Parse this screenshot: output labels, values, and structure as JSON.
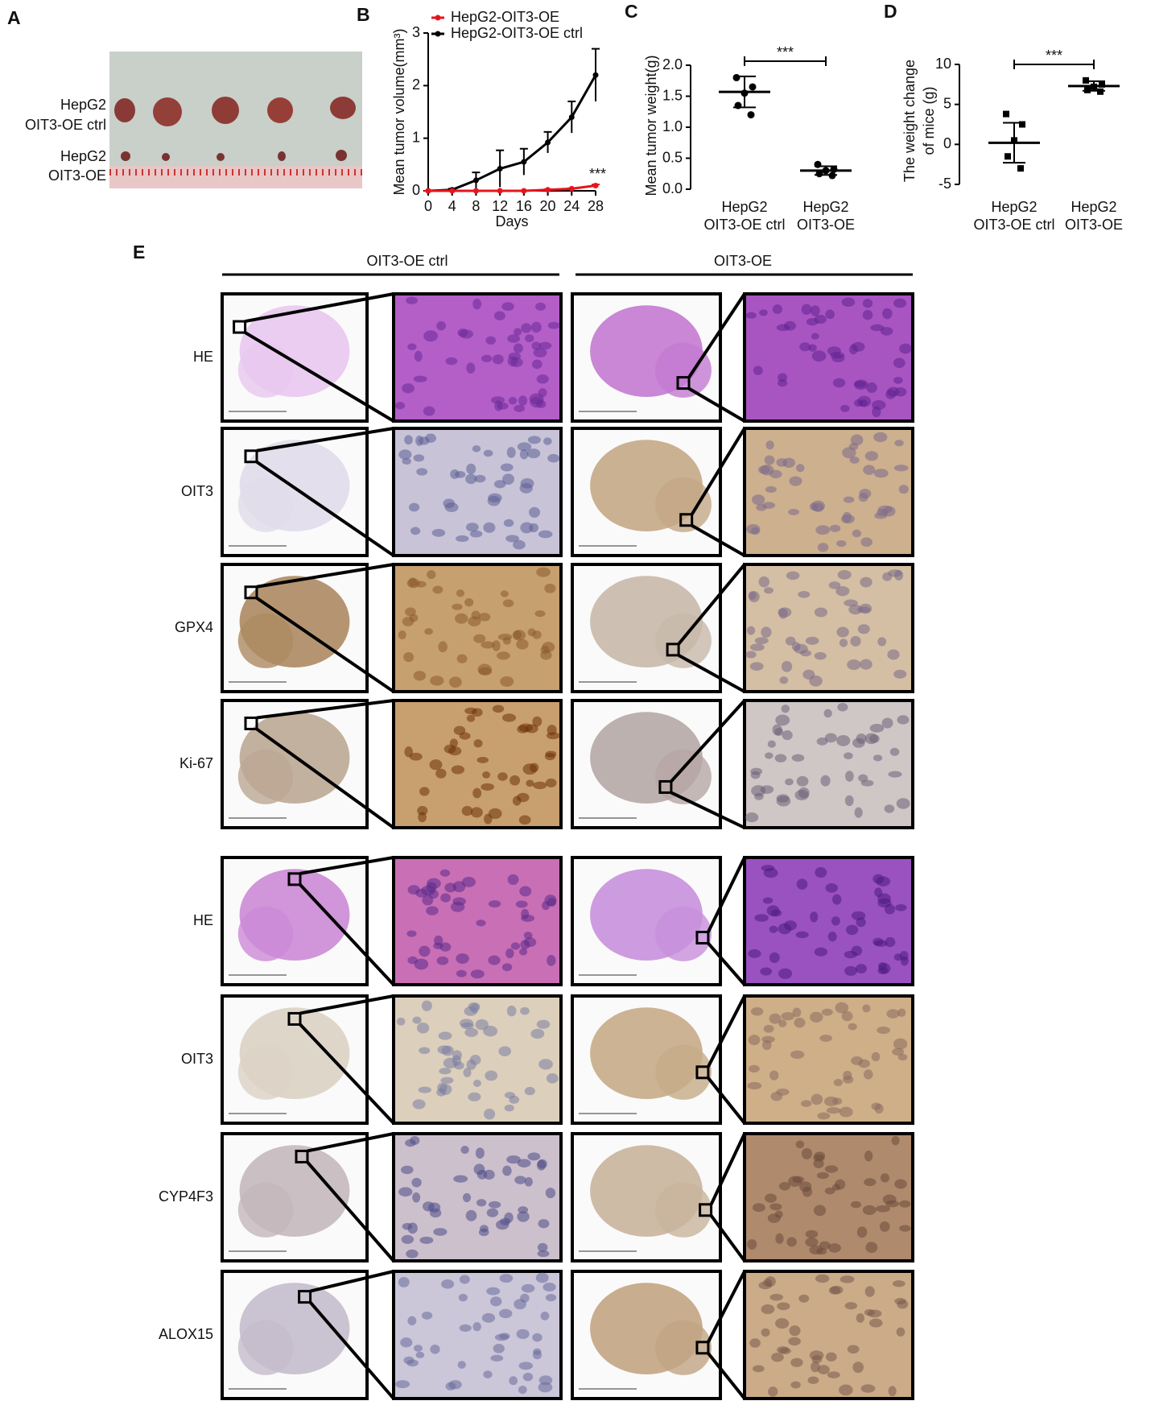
{
  "panel_labels": [
    "A",
    "B",
    "C",
    "D",
    "E"
  ],
  "panel_a": {
    "row_labels": [
      [
        "HepG2",
        "OIT3-OE  ctrl"
      ],
      [
        "HepG2",
        "OIT3-OE"
      ]
    ]
  },
  "chart_data": [
    {
      "type": "line",
      "xlabel": "Days",
      "ylabel": "Mean tumor volume(mm³)",
      "annotation": "***",
      "x": [
        0,
        4,
        8,
        12,
        16,
        20,
        24,
        28
      ],
      "xlim": [
        0,
        28
      ],
      "xticks": [
        0,
        4,
        8,
        12,
        16,
        20,
        24,
        28
      ],
      "ylim": [
        0,
        3
      ],
      "yticks": [
        0,
        1,
        2,
        3
      ],
      "series": [
        {
          "name": "HepG2-OIT3-OE",
          "color": "#e8141c",
          "values": [
            0,
            0,
            0,
            0,
            0,
            0.02,
            0.04,
            0.1
          ],
          "errors": [
            0,
            0,
            0,
            0,
            0,
            0.01,
            0.01,
            0.02
          ]
        },
        {
          "name": "HepG2-OIT3-OE  ctrl",
          "color": "#000000",
          "values": [
            0,
            0.02,
            0.2,
            0.42,
            0.55,
            0.92,
            1.4,
            2.2
          ],
          "errors": [
            0,
            0.02,
            0.15,
            0.35,
            0.25,
            0.2,
            0.3,
            0.5
          ]
        }
      ]
    },
    {
      "type": "dotplot",
      "ylabel": "Mean tumor weight(g)",
      "annotation": "***",
      "categories": [
        [
          "HepG2",
          "OIT3-OE ctrl"
        ],
        [
          "HepG2",
          "OIT3-OE"
        ]
      ],
      "ylim": [
        0,
        2
      ],
      "yticks": [
        {
          "value": 0,
          "label": "0.0"
        },
        {
          "value": 0.5,
          "label": "0.5"
        },
        {
          "value": 1,
          "label": "1.0"
        },
        {
          "value": 1.5,
          "label": "1.5"
        },
        {
          "value": 2,
          "label": "2.0"
        }
      ],
      "color": "#000000",
      "marker": "circle",
      "values": [
        [
          1.8,
          1.65,
          1.55,
          1.35,
          1.2
        ],
        [
          0.4,
          0.32,
          0.3,
          0.25,
          0.22
        ]
      ],
      "means": [
        1.57,
        0.3
      ],
      "errors": [
        0.25,
        0.07
      ]
    },
    {
      "type": "dotplot",
      "ylabel": [
        "The weight change",
        "of mice (g)"
      ],
      "annotation": "***",
      "categories": [
        [
          "HepG2",
          "OIT3-OE ctrl"
        ],
        [
          "HepG2",
          "OIT3-OE"
        ]
      ],
      "ylim": [
        -5,
        10
      ],
      "yticks": [
        -5,
        0,
        5,
        10
      ],
      "color": "#000000",
      "marker": "square",
      "values": [
        [
          3.8,
          2.5,
          0.5,
          -1.5,
          -3
        ],
        [
          8,
          7.5,
          7.2,
          6.8,
          6.6
        ]
      ],
      "means": [
        0.2,
        7.3
      ],
      "errors": [
        2.5,
        0.6
      ]
    }
  ],
  "panel_e": {
    "column_headers": [
      "OIT3-OE ctrl",
      "OIT3-OE"
    ],
    "row_labels": [
      "HE",
      "OIT3",
      "GPX4",
      "Ki-67",
      "HE",
      "OIT3",
      "CYP4F3",
      "ALOX15"
    ]
  }
}
